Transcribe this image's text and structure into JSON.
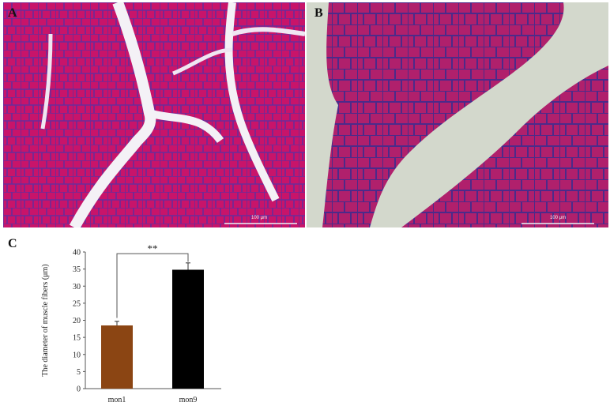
{
  "panels": [
    {
      "letter": "A",
      "scale_bar_label": "100 μm"
    },
    {
      "letter": "B",
      "scale_bar_label": "100 μm"
    }
  ],
  "chart_label": "C",
  "chart_data": {
    "type": "bar",
    "categories": [
      "mon1",
      "mon9"
    ],
    "values": [
      18.5,
      34.8
    ],
    "errors": [
      1.2,
      2.0
    ],
    "bar_colors": [
      "#8b4513",
      "#000000"
    ],
    "ylabel": "The diameter of muscle fibers (μm)",
    "xlabel": "",
    "ylim": [
      0,
      40
    ],
    "yticks": [
      0,
      5,
      10,
      15,
      20,
      25,
      30,
      35,
      40
    ],
    "significance": "**",
    "grid": false
  },
  "colors": {
    "tissue_a": "#c4186a",
    "tissue_b": "#b5246f",
    "background_b": "#d3d8cc",
    "membrane": "#5b2a9a"
  }
}
